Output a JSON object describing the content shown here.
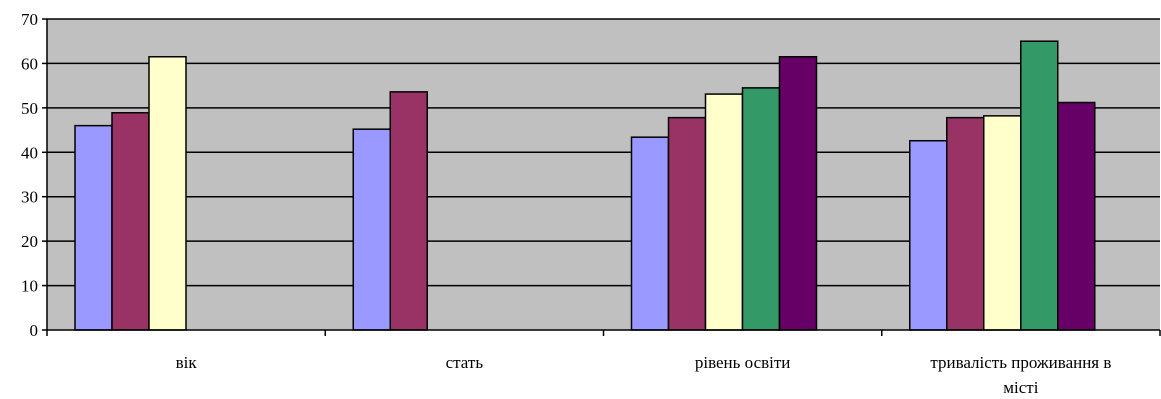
{
  "chart_data": {
    "type": "bar",
    "title": "",
    "xlabel": "",
    "ylabel": "",
    "ylim": [
      0,
      70
    ],
    "yticks": [
      0,
      10,
      20,
      30,
      40,
      50,
      60,
      70
    ],
    "grid": true,
    "legend": "none",
    "plot_background": "#C0C0C0",
    "categories": [
      [
        "вік"
      ],
      [
        "стать"
      ],
      [
        "рівень освіти"
      ],
      [
        "тривалість проживання в",
        "місті"
      ]
    ],
    "series": [
      {
        "color": "#9999FF",
        "values": [
          46,
          45.2,
          43.4,
          42.6
        ]
      },
      {
        "color": "#993366",
        "values": [
          48.9,
          53.6,
          47.8,
          47.8
        ]
      },
      {
        "color": "#FFFFCC",
        "values": [
          61.5,
          null,
          53.1,
          48.2
        ]
      },
      {
        "color": "#339966",
        "values": [
          null,
          null,
          54.5,
          65
        ]
      },
      {
        "color": "#660066",
        "values": [
          null,
          null,
          61.5,
          51.2
        ]
      }
    ]
  }
}
